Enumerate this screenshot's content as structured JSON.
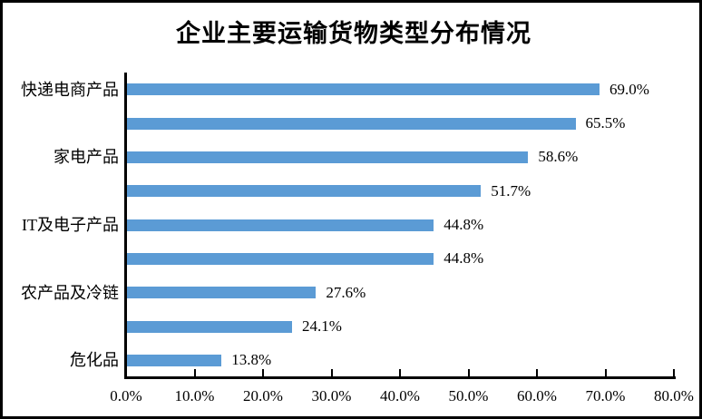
{
  "title": "企业主要运输货物类型分布情况",
  "chart_data": {
    "type": "bar",
    "orientation": "horizontal",
    "title": "企业主要运输货物类型分布情况",
    "categories": [
      "快递电商产品",
      "",
      "家电产品",
      "",
      "IT及电子产品",
      "",
      "农产品及冷链",
      "",
      "危化品"
    ],
    "values": [
      69.0,
      65.5,
      58.6,
      51.7,
      44.8,
      44.8,
      27.6,
      24.1,
      13.8
    ],
    "value_labels": [
      "69.0%",
      "65.5%",
      "58.6%",
      "51.7%",
      "44.8%",
      "44.8%",
      "27.6%",
      "24.1%",
      "13.8%"
    ],
    "xlim": [
      0,
      80
    ],
    "x_tick_labels": [
      "0.0%",
      "10.0%",
      "20.0%",
      "30.0%",
      "40.0%",
      "50.0%",
      "60.0%",
      "70.0%",
      "80.0%"
    ],
    "bar_color": "#5B9BD5",
    "axis_color": "#000000",
    "grid": false,
    "legend": "none"
  }
}
